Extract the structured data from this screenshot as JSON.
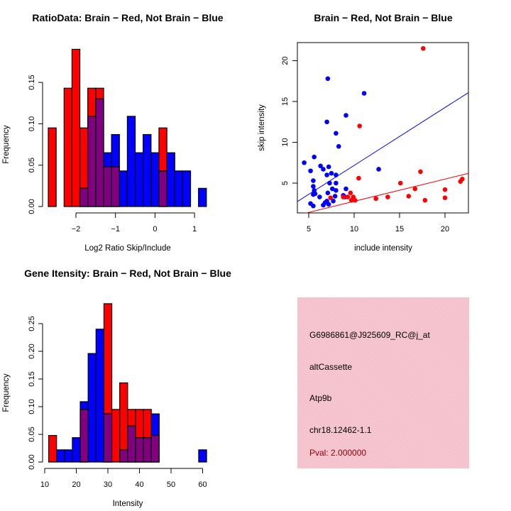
{
  "colors": {
    "brain": "#ff0000",
    "not_brain": "#0000ff",
    "overlap": "#800080",
    "panel_bg": "#f4c0cb",
    "pval": "#8b0000"
  },
  "chart_data": [
    {
      "type": "bar",
      "title": "RatioData: Brain − Red, Not Brain − Blue",
      "xlabel": "Log2 Ratio Skip/Include",
      "ylabel": "Frequency",
      "x_ticks": [
        "−2",
        "−1",
        "0",
        "1"
      ],
      "x_tick_values": [
        -2,
        -1,
        0,
        1
      ],
      "y_ticks": [
        "0.00",
        "0.05",
        "0.10",
        "0.15"
      ],
      "y_tick_values": [
        0,
        0.05,
        0.1,
        0.15
      ],
      "bin_start": -2.7,
      "bin_width": 0.2,
      "series": [
        {
          "name": "Brain",
          "color": "red",
          "values": [
            0.095,
            0,
            0.143,
            0.19,
            0.095,
            0.143,
            0.143,
            0.048,
            0.048,
            0,
            0,
            0,
            0,
            0,
            0.095,
            0,
            0,
            0,
            0,
            0
          ]
        },
        {
          "name": "Not Brain",
          "color": "blue",
          "values": [
            0,
            0,
            0,
            0,
            0.022,
            0.109,
            0.13,
            0.065,
            0.087,
            0.043,
            0.109,
            0.065,
            0.087,
            0.065,
            0.043,
            0.065,
            0.043,
            0.043,
            0,
            0.022
          ]
        }
      ]
    },
    {
      "type": "scatter",
      "title": "Brain − Red, Not Brain − Blue",
      "xlabel": "include intensity",
      "ylabel": "skip intensity",
      "x_ticks": [
        "5",
        "10",
        "15",
        "20"
      ],
      "x_tick_values": [
        5,
        10,
        15,
        20
      ],
      "y_ticks": [
        "5",
        "10",
        "15",
        "20"
      ],
      "y_tick_values": [
        5,
        10,
        15,
        20
      ],
      "xlim": [
        3.75,
        22.6
      ],
      "ylim": [
        1.35,
        22.2
      ],
      "series": [
        {
          "name": "Not Brain",
          "color": "blue",
          "points": [
            [
              7.1,
              17.8
            ],
            [
              11.1,
              16.0
            ],
            [
              9.1,
              13.3
            ],
            [
              7.0,
              12.5
            ],
            [
              8.0,
              11.1
            ],
            [
              8.3,
              9.5
            ],
            [
              4.5,
              7.5
            ],
            [
              5.6,
              8.2
            ],
            [
              5.2,
              6.5
            ],
            [
              6.3,
              7.1
            ],
            [
              6.6,
              6.7
            ],
            [
              7.2,
              7.0
            ],
            [
              7.0,
              6.0
            ],
            [
              7.5,
              6.2
            ],
            [
              8.0,
              6.0
            ],
            [
              5.5,
              5.3
            ],
            [
              7.3,
              5.0
            ],
            [
              8.0,
              5.0
            ],
            [
              5.5,
              4.6
            ],
            [
              5.6,
              4.1
            ],
            [
              5.5,
              3.6
            ],
            [
              6.2,
              3.3
            ],
            [
              7.6,
              4.3
            ],
            [
              8.0,
              4.1
            ],
            [
              7.1,
              3.8
            ],
            [
              7.9,
              3.4
            ],
            [
              9.1,
              4.3
            ],
            [
              8.8,
              3.5
            ],
            [
              9.0,
              3.3
            ],
            [
              12.7,
              6.7
            ],
            [
              5.2,
              2.5
            ],
            [
              5.5,
              2.2
            ],
            [
              6.6,
              2.3
            ],
            [
              6.8,
              2.6
            ],
            [
              7.0,
              2.8
            ],
            [
              7.2,
              2.4
            ],
            [
              7.7,
              2.8
            ],
            [
              5.7,
              3.7
            ]
          ],
          "fit": {
            "slope": 0.709,
            "intercept": 0.08
          }
        },
        {
          "name": "Brain",
          "color": "red",
          "points": [
            [
              17.6,
              21.5
            ],
            [
              10.6,
              12.0
            ],
            [
              10.5,
              5.6
            ],
            [
              17.3,
              6.4
            ],
            [
              15.1,
              5.0
            ],
            [
              21.9,
              5.5
            ],
            [
              21.7,
              5.2
            ],
            [
              16.7,
              4.3
            ],
            [
              20.0,
              4.2
            ],
            [
              20.0,
              3.2
            ],
            [
              17.8,
              2.9
            ],
            [
              16.0,
              3.4
            ],
            [
              13.7,
              3.3
            ],
            [
              12.4,
              3.1
            ],
            [
              9.6,
              3.8
            ],
            [
              7.4,
              3.2
            ],
            [
              8.8,
              3.3
            ],
            [
              9.3,
              3.3
            ],
            [
              9.9,
              3.3
            ],
            [
              9.7,
              2.9
            ],
            [
              10.1,
              2.9
            ]
          ],
          "fit": {
            "slope": 0.272,
            "intercept": 0.05
          }
        }
      ]
    },
    {
      "type": "bar",
      "title": "Gene Itensity: Brain − Red, Not Brain − Blue",
      "xlabel": "Intensity",
      "ylabel": "Frequency",
      "x_ticks": [
        "10",
        "20",
        "30",
        "40",
        "50",
        "60"
      ],
      "x_tick_values": [
        10,
        20,
        30,
        40,
        50,
        60
      ],
      "y_ticks": [
        "0.00",
        "0.05",
        "0.10",
        "0.15",
        "0.20",
        "0.25"
      ],
      "y_tick_values": [
        0,
        0.05,
        0.1,
        0.15,
        0.2,
        0.25
      ],
      "bin_start": 11.25,
      "bin_width": 2.5,
      "series": [
        {
          "name": "Brain",
          "color": "red",
          "values": [
            0.048,
            0,
            0,
            0,
            0.095,
            0,
            0,
            0.286,
            0.095,
            0.143,
            0.095,
            0.095,
            0.095,
            0.048,
            0,
            0,
            0,
            0,
            0,
            0
          ]
        },
        {
          "name": "Not Brain",
          "color": "blue",
          "values": [
            0,
            0.022,
            0.022,
            0.044,
            0.109,
            0.196,
            0.24,
            0.087,
            0,
            0.022,
            0.065,
            0.044,
            0.044,
            0.087,
            0,
            0,
            0,
            0,
            0,
            0.022
          ]
        }
      ]
    }
  ],
  "info_panel": {
    "probe_id": "G6986861@J925609_RC@j_at",
    "event_type": "altCassette",
    "gene": "Atp9b",
    "location": "chr18.12462-1.1",
    "pval": "Pval: 2.000000"
  }
}
